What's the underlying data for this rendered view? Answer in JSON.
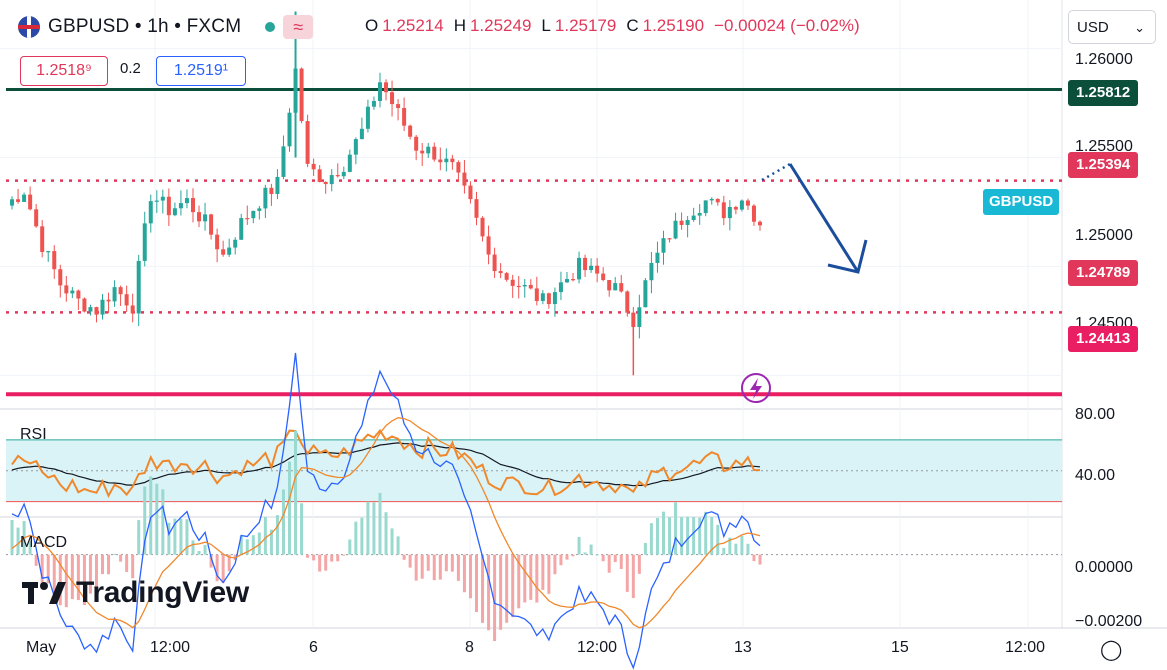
{
  "header": {
    "symbol": "GBPUSD • 1h • FXCM",
    "open_label": "O",
    "open": "1.25214",
    "high_label": "H",
    "high": "1.25249",
    "low_label": "L",
    "low": "1.25179",
    "close_label": "C",
    "close": "1.25190",
    "change": "−0.00024 (−0.02%)",
    "bid": "1.2518⁹",
    "spread": "0.2",
    "ask": "1.2519¹",
    "currency": "USD"
  },
  "levels": [
    {
      "price": "1.25812",
      "color": "#0b4f3a",
      "style": "solid"
    },
    {
      "price": "1.25394",
      "color": "#e0375a",
      "style": "dotted"
    },
    {
      "price": "1.24789",
      "color": "#e0375a",
      "style": "dotted"
    },
    {
      "price": "1.24413",
      "color": "#e91e63",
      "style": "solid"
    }
  ],
  "symbol_label": "GBPUSD",
  "price_axis": [
    "1.26000",
    "1.25500",
    "1.25000",
    "1.24500"
  ],
  "time_axis": [
    "May",
    "12:00",
    "6",
    "8",
    "12:00",
    "13",
    "15",
    "12:00"
  ],
  "rsi": {
    "title": "RSI",
    "levels": [
      "80.00",
      "40.00"
    ]
  },
  "macd": {
    "title": "MACD",
    "levels": [
      "0.00000",
      "−0.00200"
    ]
  },
  "brand": "TradingView",
  "chart_data": {
    "type": "candlestick",
    "symbol": "GBPUSD",
    "interval": "1h",
    "ylim": [
      1.2435,
      1.262
    ],
    "close_path": [
      [
        0,
        1.2528
      ],
      [
        3,
        1.2535
      ],
      [
        6,
        1.251
      ],
      [
        9,
        1.2492
      ],
      [
        12,
        1.2484
      ],
      [
        15,
        1.248
      ],
      [
        18,
        1.249
      ],
      [
        21,
        1.2482
      ],
      [
        24,
        1.2533
      ],
      [
        27,
        1.2526
      ],
      [
        30,
        1.253
      ],
      [
        33,
        1.252
      ],
      [
        36,
        1.2505
      ],
      [
        39,
        1.252
      ],
      [
        42,
        1.253
      ],
      [
        45,
        1.2538
      ],
      [
        48,
        1.259
      ],
      [
        50,
        1.2545
      ],
      [
        53,
        1.254
      ],
      [
        56,
        1.2547
      ],
      [
        59,
        1.2562
      ],
      [
        62,
        1.2585
      ],
      [
        65,
        1.257
      ],
      [
        68,
        1.2555
      ],
      [
        71,
        1.2552
      ],
      [
        74,
        1.2545
      ],
      [
        77,
        1.2528
      ],
      [
        80,
        1.2505
      ],
      [
        83,
        1.2495
      ],
      [
        86,
        1.249
      ],
      [
        89,
        1.2484
      ],
      [
        92,
        1.2492
      ],
      [
        95,
        1.25
      ],
      [
        98,
        1.2496
      ],
      [
        101,
        1.249
      ],
      [
        104,
        1.2476
      ],
      [
        107,
        1.25
      ],
      [
        110,
        1.2515
      ],
      [
        113,
        1.2525
      ],
      [
        116,
        1.253
      ],
      [
        119,
        1.2525
      ],
      [
        122,
        1.2532
      ],
      [
        125,
        1.252
      ]
    ],
    "rsi_range": [
      20,
      90
    ],
    "rsi_band": [
      30,
      70
    ],
    "macd_range": [
      -0.0024,
      0.0012
    ]
  }
}
